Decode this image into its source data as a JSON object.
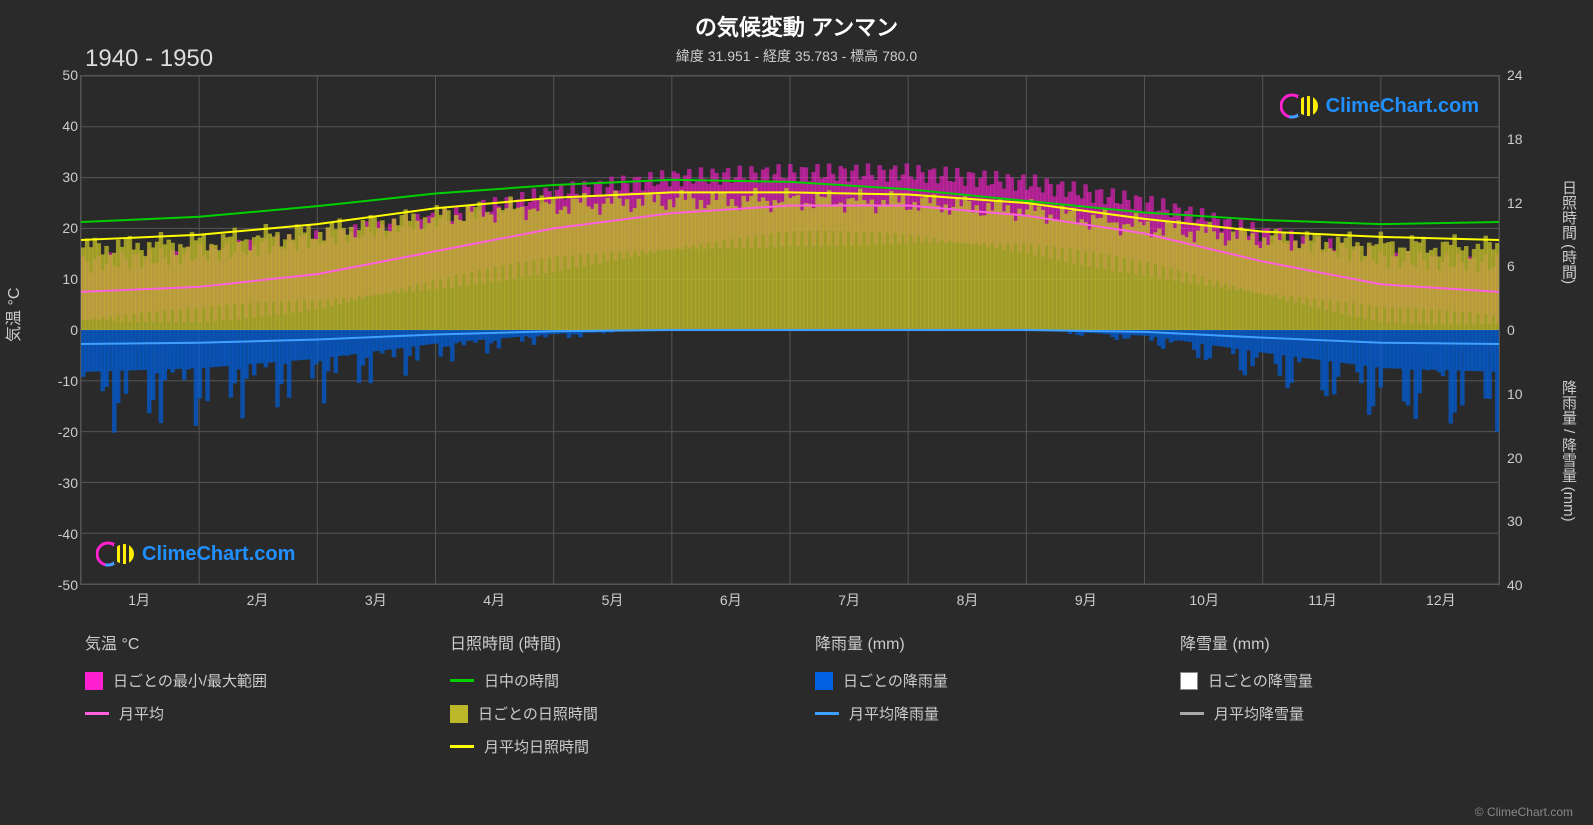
{
  "title": "の気候変動 アンマン",
  "subtitle": "緯度 31.951 - 経度 35.783 - 標高 780.0",
  "year_range": "1940 - 1950",
  "copyright": "© ClimeChart.com",
  "watermark_text": "ClimeChart.com",
  "chart": {
    "background_color": "#2a2a2a",
    "plot_bg": "#2a2a2a",
    "grid_color": "#555555",
    "border_color": "#555555",
    "axis_text_color": "#cccccc",
    "y_left": {
      "label": "気温 °C",
      "min": -50,
      "max": 50,
      "ticks": [
        50,
        40,
        30,
        20,
        10,
        0,
        -10,
        -20,
        -30,
        -40,
        -50
      ]
    },
    "y_right_top": {
      "label": "日照時間 (時間)",
      "min": 0,
      "max": 24,
      "ticks": [
        24,
        18,
        12,
        6,
        0
      ]
    },
    "y_right_bot": {
      "label": "降雨量 / 降雪量 (mm)",
      "min": 0,
      "max": 40,
      "ticks": [
        10,
        20,
        30,
        40
      ]
    },
    "x": {
      "labels": [
        "1月",
        "2月",
        "3月",
        "4月",
        "5月",
        "6月",
        "7月",
        "8月",
        "9月",
        "10月",
        "11月",
        "12月"
      ]
    },
    "series": {
      "daylight_line": {
        "color": "#00d000",
        "width": 2,
        "data": [
          10.2,
          10.7,
          11.7,
          12.9,
          13.7,
          14.2,
          14.0,
          13.3,
          12.2,
          11.1,
          10.4,
          10.0,
          10.2
        ]
      },
      "sunshine_avg_line": {
        "color": "#ffff00",
        "width": 2,
        "data": [
          8.5,
          9.0,
          10.0,
          11.5,
          12.5,
          13.0,
          13.0,
          12.8,
          12.0,
          10.5,
          9.3,
          8.8,
          8.5
        ]
      },
      "temp_avg_line": {
        "color": "#ff60e0",
        "width": 2,
        "data": [
          7.5,
          8.5,
          11.0,
          15.5,
          20.0,
          23.0,
          24.5,
          24.5,
          22.5,
          19.0,
          13.5,
          9.0,
          7.5
        ]
      },
      "rain_avg_line": {
        "color": "#40a0ff",
        "width": 2,
        "data": [
          2.2,
          2.0,
          1.5,
          0.7,
          0.2,
          0.0,
          0.0,
          0.0,
          0.0,
          0.3,
          1.2,
          2.0,
          2.2
        ]
      },
      "temp_range_band": {
        "color": "#ff20d0",
        "opacity": 0.6,
        "low": [
          2,
          3,
          5,
          9,
          13,
          16,
          18,
          18,
          16,
          12,
          7,
          3,
          2
        ],
        "high": [
          13,
          15,
          18,
          22,
          27,
          30,
          31,
          31,
          29,
          25,
          19,
          14,
          13
        ]
      },
      "sunshine_daily_bars": {
        "color": "#bdb82a",
        "opacity": 0.8
      },
      "rain_daily_bars": {
        "color": "#0060e0",
        "opacity": 0.7
      },
      "snow_daily_bars": {
        "color": "#ffffff",
        "opacity": 0.7
      },
      "snow_avg_line": {
        "color": "#aaaaaa",
        "width": 2
      }
    }
  },
  "legend": {
    "cols": [
      {
        "header": "気温 °C",
        "items": [
          {
            "type": "swatch",
            "color": "#ff20d0",
            "label": "日ごとの最小/最大範囲"
          },
          {
            "type": "line",
            "color": "#ff60e0",
            "label": "月平均"
          }
        ]
      },
      {
        "header": "日照時間 (時間)",
        "items": [
          {
            "type": "line",
            "color": "#00d000",
            "label": "日中の時間"
          },
          {
            "type": "swatch",
            "color": "#bdb82a",
            "label": "日ごとの日照時間"
          },
          {
            "type": "line",
            "color": "#ffff00",
            "label": "月平均日照時間"
          }
        ]
      },
      {
        "header": "降雨量 (mm)",
        "items": [
          {
            "type": "swatch",
            "color": "#0060e0",
            "label": "日ごとの降雨量"
          },
          {
            "type": "line",
            "color": "#40a0ff",
            "label": "月平均降雨量"
          }
        ]
      },
      {
        "header": "降雪量 (mm)",
        "items": [
          {
            "type": "swatch",
            "color": "#ffffff",
            "label": "日ごとの降雪量"
          },
          {
            "type": "line",
            "color": "#aaaaaa",
            "label": "月平均降雪量"
          }
        ]
      }
    ]
  }
}
